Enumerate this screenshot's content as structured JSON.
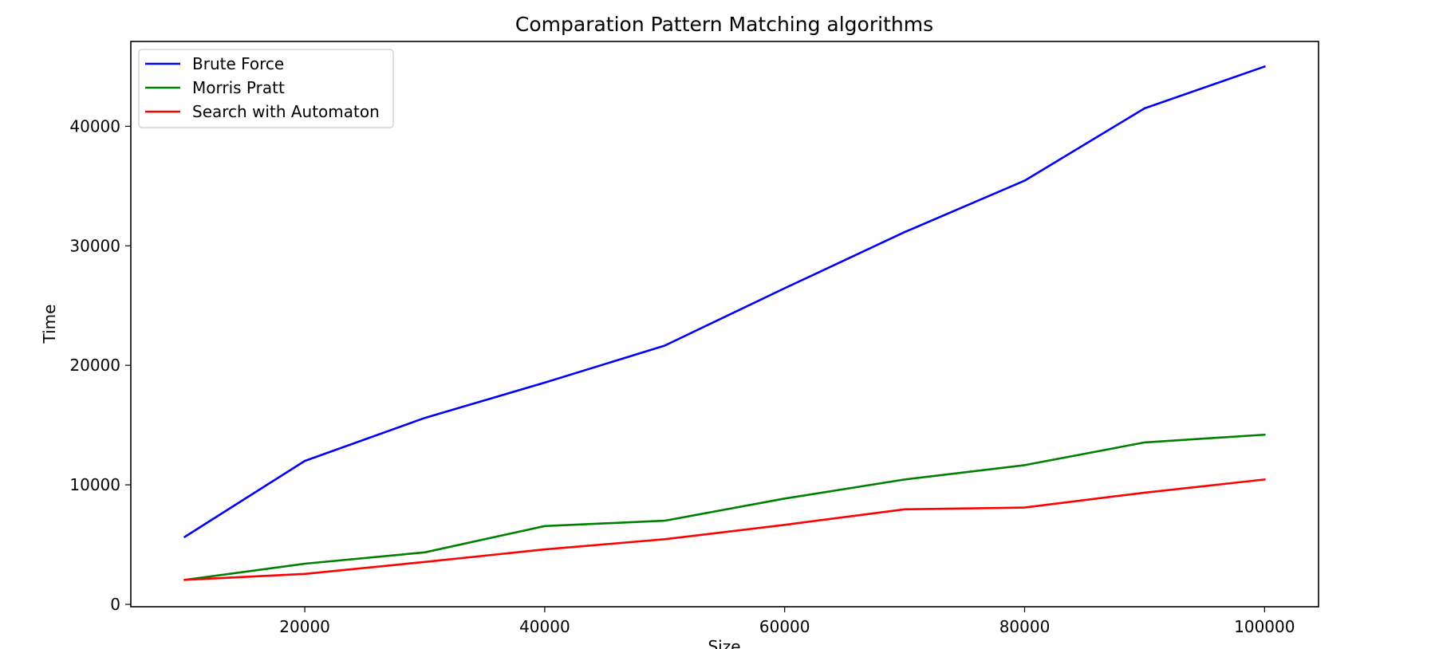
{
  "chart_data": {
    "type": "line",
    "title": "Comparation Pattern Matching algorithms",
    "xlabel": "Size",
    "ylabel": "Time",
    "x": [
      10000,
      20000,
      30000,
      40000,
      50000,
      60000,
      70000,
      80000,
      90000,
      100000
    ],
    "xlim": [
      5500,
      104500
    ],
    "ylim": [
      -200,
      47100
    ],
    "xticks": [
      "20000",
      "40000",
      "60000",
      "80000",
      "100000"
    ],
    "yticks": [
      "0",
      "10000",
      "20000",
      "30000",
      "40000"
    ],
    "grid": false,
    "legend_position": "top-left",
    "series": [
      {
        "name": "Brute Force",
        "color": "#0000ff",
        "values": [
          5650,
          12000,
          15600,
          18550,
          21650,
          26450,
          31150,
          35450,
          41500,
          45000
        ]
      },
      {
        "name": "Morris Pratt",
        "color": "#008000",
        "values": [
          2050,
          3400,
          4350,
          6550,
          7000,
          8850,
          10450,
          11650,
          13550,
          14200
        ]
      },
      {
        "name": "Search with Automaton",
        "color": "#ff0000",
        "values": [
          2050,
          2550,
          3550,
          4600,
          5450,
          6650,
          7950,
          8100,
          9350,
          10450
        ]
      }
    ]
  }
}
